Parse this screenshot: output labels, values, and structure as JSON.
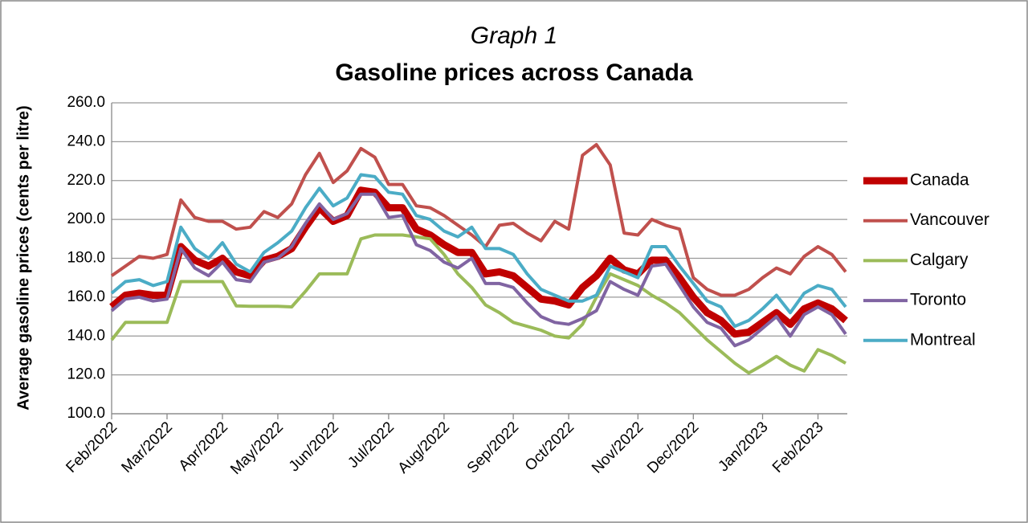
{
  "chart_data": {
    "type": "line",
    "title": "Graph 1",
    "subtitle": "Gasoline prices across Canada",
    "y_label": "Average gasoline prices (cents per litre)",
    "categories": [
      "Feb/2022",
      null,
      null,
      null,
      "Mar/2022",
      null,
      null,
      null,
      "Apr/2022",
      null,
      null,
      null,
      "May/2022",
      null,
      null,
      null,
      "Jun/2022",
      null,
      null,
      null,
      "Jul/2022",
      null,
      null,
      null,
      "Aug/2022",
      null,
      null,
      null,
      null,
      "Sep/2022",
      null,
      null,
      null,
      "Oct/2022",
      null,
      null,
      null,
      null,
      "Nov/2022",
      null,
      null,
      null,
      "Dec/2022",
      null,
      null,
      null,
      null,
      "Jan/2023",
      null,
      null,
      null,
      "Feb/2023",
      null,
      null
    ],
    "ylim": [
      100,
      260
    ],
    "yticks": [
      {
        "value": 100,
        "label": "100.0"
      },
      {
        "value": 120,
        "label": "120.0"
      },
      {
        "value": 140,
        "label": "140.0"
      },
      {
        "value": 160,
        "label": "160.0"
      },
      {
        "value": 180,
        "label": "180.0"
      },
      {
        "value": 200,
        "label": "200.0"
      },
      {
        "value": 220,
        "label": "220.0"
      },
      {
        "value": 240,
        "label": "240.0"
      },
      {
        "value": 260,
        "label": "260.0"
      }
    ],
    "grid": true,
    "legend": "right",
    "series": [
      {
        "name": "Canada",
        "color": "#c00000",
        "width": 9,
        "values": [
          155,
          161,
          162,
          161,
          161,
          186,
          179,
          176,
          180,
          173,
          171,
          179,
          181,
          185,
          196,
          206,
          199,
          202,
          215,
          214,
          206,
          206,
          195,
          192,
          187,
          183,
          183,
          172,
          173,
          171,
          165,
          159,
          158,
          156,
          165,
          171,
          180,
          174,
          172,
          179,
          179,
          170,
          160,
          152,
          148,
          141,
          142,
          147,
          152,
          146,
          154,
          157,
          154,
          148
        ]
      },
      {
        "name": "Vancouver",
        "color": "#c0504d",
        "width": 4,
        "values": [
          171,
          176,
          181,
          180,
          182,
          210,
          201,
          199,
          199,
          195,
          196,
          204,
          201,
          208,
          223,
          234,
          219,
          225,
          236.5,
          232,
          218,
          218,
          207,
          206,
          202,
          197,
          192,
          186,
          197,
          198,
          193,
          189,
          199,
          195,
          233,
          238.5,
          228,
          193,
          192,
          200,
          197,
          195,
          170,
          164,
          161,
          161,
          164,
          170,
          175,
          172,
          181,
          186,
          182,
          173
        ]
      },
      {
        "name": "Calgary",
        "color": "#9bbb59",
        "width": 4,
        "values": [
          138,
          147,
          147,
          147,
          147,
          168,
          168,
          168,
          168,
          155.5,
          155.3,
          155.3,
          155.3,
          155,
          163,
          172,
          172,
          172,
          190,
          192,
          192,
          192,
          191,
          190,
          182,
          172,
          165,
          156,
          152,
          147,
          145,
          143,
          140,
          139,
          146,
          160,
          172,
          169,
          166,
          161,
          157,
          152,
          145,
          138,
          132,
          126,
          121,
          125,
          129.5,
          125,
          122,
          133,
          130,
          126
        ]
      },
      {
        "name": "Toronto",
        "color": "#8064a2",
        "width": 4,
        "values": [
          153,
          159,
          160,
          158,
          159,
          185,
          175,
          171,
          178,
          169,
          168,
          178,
          180,
          186,
          198,
          208,
          200,
          203,
          213,
          213,
          201,
          202,
          187,
          184,
          178,
          175,
          180,
          167,
          167,
          165,
          157,
          150,
          147,
          146,
          149,
          153,
          168,
          164,
          161,
          176,
          177,
          166,
          155,
          147,
          144,
          135,
          138,
          144,
          150,
          140,
          151,
          155,
          151,
          141
        ]
      },
      {
        "name": "Montreal",
        "color": "#4bacc6",
        "width": 4,
        "values": [
          162,
          168,
          169,
          166,
          168,
          196,
          185,
          180,
          188,
          177,
          173,
          183,
          188,
          194,
          206,
          216,
          207,
          211,
          223,
          222,
          214,
          213,
          202,
          200,
          194,
          191,
          196,
          185,
          185,
          182,
          172,
          164,
          161,
          158,
          158,
          161,
          176,
          173,
          170,
          186,
          186,
          176,
          167,
          158,
          155,
          145,
          148,
          154,
          161,
          152,
          162,
          166,
          164,
          155
        ]
      }
    ]
  }
}
